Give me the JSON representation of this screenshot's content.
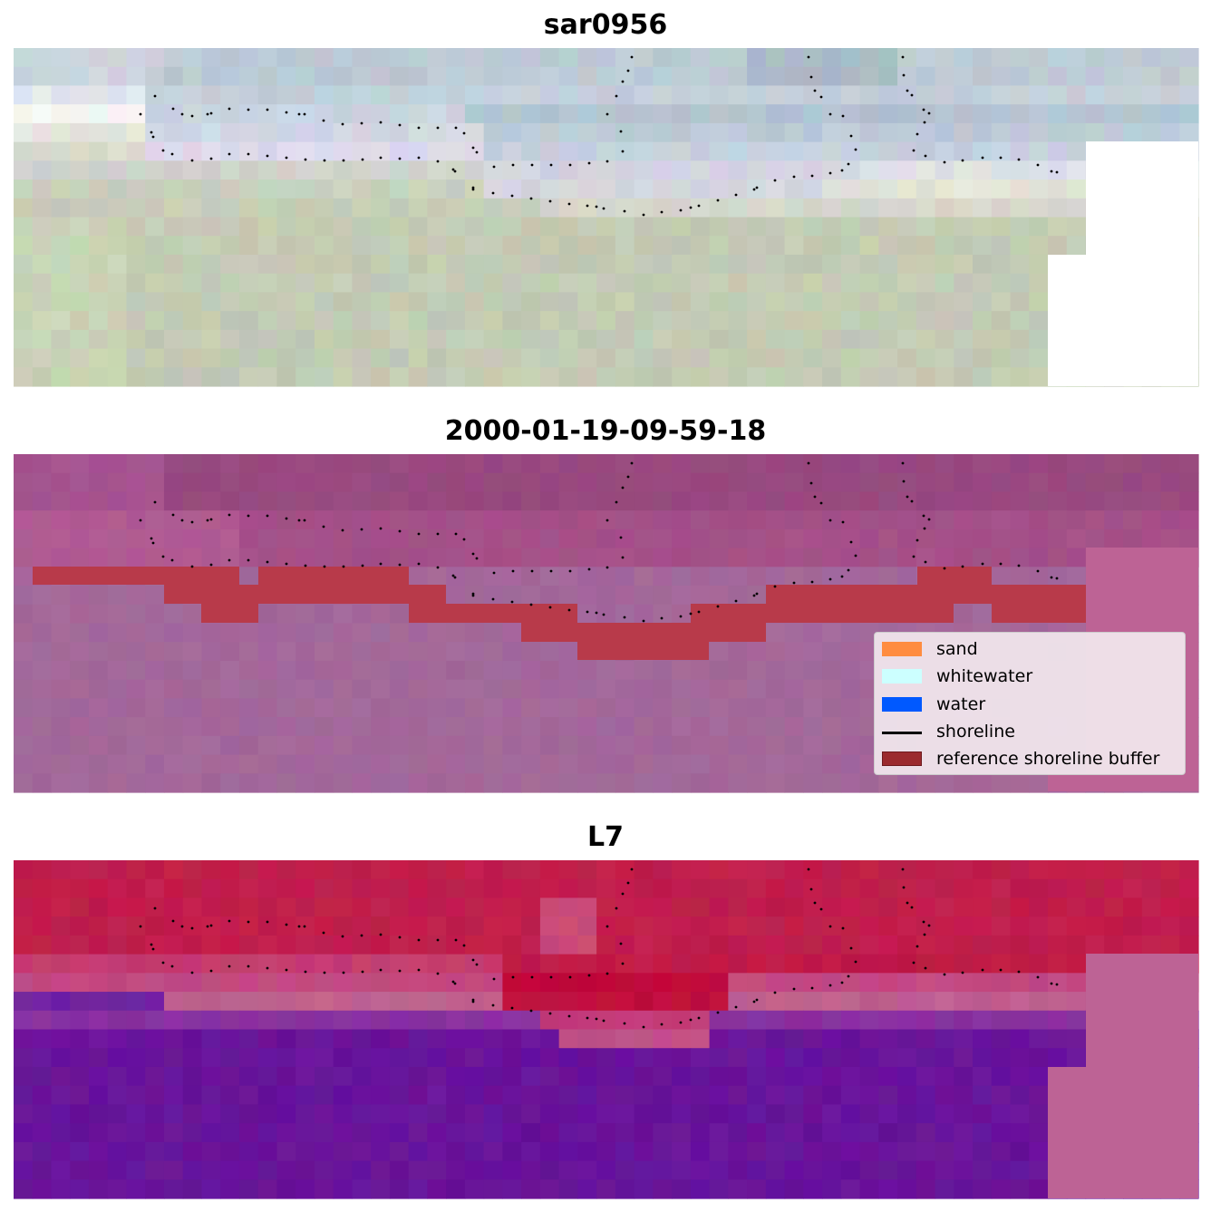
{
  "panels": [
    {
      "title": "sar0956"
    },
    {
      "title": "2000-01-19-09-59-18"
    },
    {
      "title": "L7"
    }
  ],
  "legend": {
    "placement": "lower-right of middle panel",
    "items": [
      {
        "label": "sand",
        "color": "#ff8c40",
        "kind": "patch"
      },
      {
        "label": "whitewater",
        "color": "#ccffff",
        "kind": "patch"
      },
      {
        "label": "water",
        "color": "#0059ff",
        "kind": "patch"
      },
      {
        "label": "shoreline",
        "color": "#000000",
        "kind": "line"
      },
      {
        "label": "reference shoreline buffer",
        "color": "#9b2a2e",
        "kind": "patch"
      }
    ]
  },
  "colors": {
    "buffer": "#b83a4a",
    "nodata": "#bd6395",
    "shoreline_points": "#000000"
  }
}
